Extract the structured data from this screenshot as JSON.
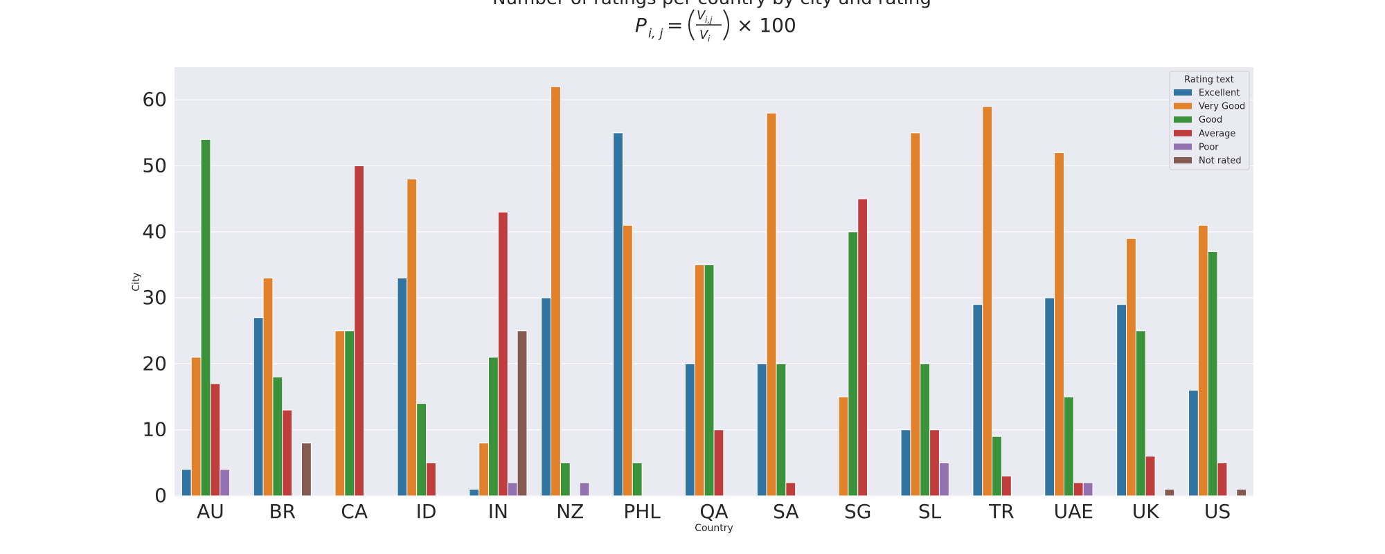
{
  "chart_data": {
    "type": "bar",
    "title": "Number of ratings per country by city and rating",
    "formula": {
      "lhs": "P",
      "lhs_sub": "i, j",
      "num": "V",
      "num_sub": "i,j",
      "den": "V",
      "den_sub": "i",
      "times": "× 100"
    },
    "xlabel": "Country",
    "ylabel": "City",
    "ylim": [
      0,
      65
    ],
    "yticks": [
      0,
      10,
      20,
      30,
      40,
      50,
      60
    ],
    "grid": true,
    "legend": {
      "title": "Rating text",
      "position": "top-right"
    },
    "categories": [
      "AU",
      "BR",
      "CA",
      "ID",
      "IN",
      "NZ",
      "PHL",
      "QA",
      "SA",
      "SG",
      "SL",
      "TR",
      "UAE",
      "UK",
      "US"
    ],
    "series": [
      {
        "name": "Excellent",
        "color": "#3274a1",
        "values": [
          4,
          27,
          0,
          33,
          1,
          30,
          55,
          20,
          20,
          0,
          10,
          29,
          30,
          29,
          16
        ]
      },
      {
        "name": "Very Good",
        "color": "#e1812c",
        "values": [
          21,
          33,
          25,
          48,
          8,
          62,
          41,
          35,
          58,
          15,
          55,
          59,
          52,
          39,
          41
        ]
      },
      {
        "name": "Good",
        "color": "#3a923a",
        "values": [
          54,
          18,
          25,
          14,
          21,
          5,
          5,
          35,
          20,
          40,
          20,
          9,
          15,
          25,
          37
        ]
      },
      {
        "name": "Average",
        "color": "#c03d3e",
        "values": [
          17,
          13,
          50,
          5,
          43,
          0,
          0,
          10,
          2,
          45,
          10,
          3,
          2,
          6,
          5
        ]
      },
      {
        "name": "Poor",
        "color": "#9372b2",
        "values": [
          4,
          0,
          0,
          0,
          2,
          2,
          0,
          0,
          0,
          0,
          5,
          0,
          2,
          0,
          0
        ]
      },
      {
        "name": "Not rated",
        "color": "#845b53",
        "values": [
          0,
          8,
          0,
          0,
          25,
          0,
          0,
          0,
          0,
          0,
          0,
          0,
          0,
          1,
          1
        ]
      }
    ]
  }
}
